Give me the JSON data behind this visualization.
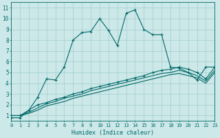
{
  "xlabel": "Humidex (Indice chaleur)",
  "bg_color": "#cde8e8",
  "grid_color": "#9fcece",
  "line_color": "#006868",
  "xlim": [
    0,
    23
  ],
  "ylim": [
    0.5,
    11.5
  ],
  "xticks": [
    0,
    1,
    2,
    3,
    4,
    5,
    6,
    7,
    8,
    9,
    10,
    11,
    12,
    13,
    14,
    15,
    16,
    17,
    18,
    19,
    20,
    21,
    22,
    23
  ],
  "yticks": [
    1,
    2,
    3,
    4,
    5,
    6,
    7,
    8,
    9,
    10,
    11
  ],
  "series1_x": [
    0,
    1,
    2,
    3,
    4,
    5,
    6,
    7,
    8,
    9,
    10,
    11,
    12,
    13,
    14,
    15,
    16,
    17,
    18,
    19,
    20,
    21,
    22,
    23
  ],
  "series1_y": [
    0.8,
    0.8,
    1.5,
    2.7,
    4.4,
    4.3,
    5.5,
    8.0,
    8.7,
    8.8,
    10.0,
    8.9,
    7.5,
    10.5,
    10.8,
    9.0,
    8.5,
    8.5,
    5.5,
    5.4,
    5.0,
    4.3,
    5.5,
    5.5
  ],
  "series2_x": [
    0,
    1,
    2,
    3,
    4,
    5,
    6,
    7,
    8,
    9,
    10,
    11,
    12,
    13,
    14,
    15,
    16,
    17,
    18,
    19,
    20,
    21,
    22,
    23
  ],
  "series2_y": [
    1.0,
    1.0,
    1.5,
    2.0,
    2.2,
    2.5,
    2.7,
    3.0,
    3.2,
    3.5,
    3.7,
    3.9,
    4.1,
    4.3,
    4.5,
    4.7,
    5.0,
    5.2,
    5.3,
    5.5,
    5.3,
    5.0,
    4.4,
    5.5
  ],
  "series3_x": [
    0,
    1,
    2,
    3,
    4,
    5,
    6,
    7,
    8,
    9,
    10,
    11,
    12,
    13,
    14,
    15,
    16,
    17,
    18,
    19,
    20,
    21,
    22,
    23
  ],
  "series3_y": [
    1.0,
    1.0,
    1.3,
    1.7,
    2.1,
    2.3,
    2.6,
    2.8,
    3.0,
    3.3,
    3.5,
    3.7,
    3.9,
    4.1,
    4.3,
    4.5,
    4.7,
    4.9,
    5.0,
    5.2,
    5.0,
    4.7,
    4.2,
    5.2
  ],
  "series4_x": [
    0,
    1,
    2,
    3,
    4,
    5,
    6,
    7,
    8,
    9,
    10,
    11,
    12,
    13,
    14,
    15,
    16,
    17,
    18,
    19,
    20,
    21,
    22,
    23
  ],
  "series4_y": [
    1.0,
    1.0,
    1.2,
    1.5,
    1.9,
    2.1,
    2.3,
    2.6,
    2.8,
    3.0,
    3.2,
    3.4,
    3.6,
    3.8,
    4.0,
    4.2,
    4.4,
    4.6,
    4.8,
    4.9,
    4.7,
    4.5,
    4.0,
    5.0
  ]
}
